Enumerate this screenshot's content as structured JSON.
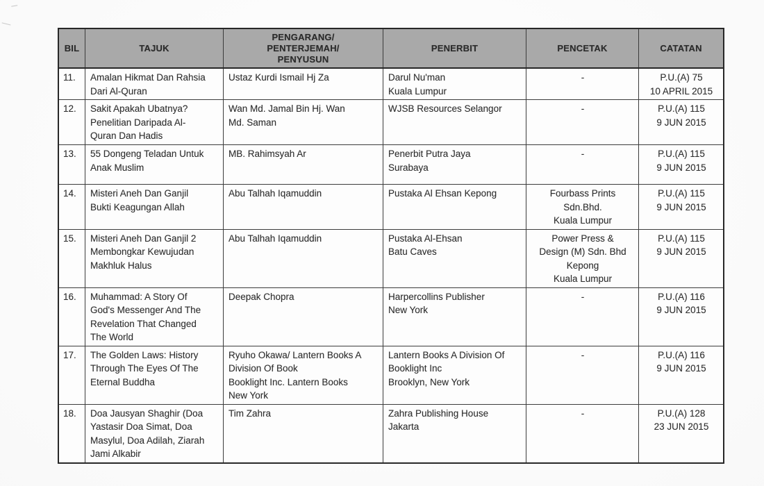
{
  "colors": {
    "header_bg": "#a9a9a9",
    "border": "#3b3b3b",
    "text": "#2f2f2f",
    "page_bg": "#fbfbfb"
  },
  "table": {
    "columns": [
      {
        "key": "bil",
        "label": "BIL"
      },
      {
        "key": "tajuk",
        "label": "TAJUK"
      },
      {
        "key": "pengarang",
        "label": "PENGARANG/\nPENTERJEMAH/\nPENYUSUN"
      },
      {
        "key": "penerbit",
        "label": "PENERBIT"
      },
      {
        "key": "pencetak",
        "label": "PENCETAK"
      },
      {
        "key": "catatan",
        "label": "CATATAN"
      }
    ],
    "rows": [
      {
        "bil": "11.",
        "tajuk": "Amalan Hikmat Dan Rahsia\nDari Al-Quran",
        "pengarang": "Ustaz Kurdi Ismail Hj Za",
        "penerbit": "Darul Nu'man\nKuala Lumpur",
        "pencetak": "-",
        "catatan": "P.U.(A) 75\n10 APRIL 2015"
      },
      {
        "bil": "12.",
        "tajuk": "Sakit Apakah Ubatnya?\nPenelitian Daripada Al-\nQuran Dan Hadis",
        "pengarang": "Wan Md. Jamal Bin Hj. Wan\nMd. Saman",
        "penerbit": "WJSB Resources Selangor",
        "pencetak": "-",
        "catatan": "P.U.(A) 115\n9 JUN 2015"
      },
      {
        "bil": "13.",
        "tajuk": "55 Dongeng Teladan Untuk\nAnak Muslim",
        "pengarang": "MB. Rahimsyah Ar",
        "penerbit": "Penerbit Putra Jaya\nSurabaya",
        "pencetak": "-",
        "catatan": "P.U.(A) 115\n9 JUN 2015"
      },
      {
        "bil": "14.",
        "tajuk": "Misteri Aneh Dan Ganjil\nBukti Keagungan Allah",
        "pengarang": "Abu Talhah Iqamuddin",
        "penerbit": "Pustaka Al Ehsan  Kepong",
        "pencetak": "Fourbass Prints\nSdn.Bhd.\nKuala Lumpur",
        "catatan": "P.U.(A) 115\n9 JUN 2015"
      },
      {
        "bil": "15.",
        "tajuk": "Misteri Aneh Dan Ganjil 2\nMembongkar Kewujudan\nMakhluk Halus",
        "pengarang": "Abu Talhah Iqamuddin",
        "penerbit": "Pustaka Al-Ehsan\nBatu Caves",
        "pencetak": "Power Press &\nDesign (M) Sdn. Bhd\nKepong\nKuala Lumpur",
        "catatan": "P.U.(A) 115\n9 JUN 2015"
      },
      {
        "bil": "16.",
        "tajuk": "Muhammad: A Story Of\nGod's Messenger And The\nRevelation That Changed\nThe World",
        "pengarang": "Deepak Chopra",
        "penerbit": "Harpercollins Publisher\nNew York",
        "pencetak": "-",
        "catatan": "P.U.(A) 116\n9 JUN 2015"
      },
      {
        "bil": "17.",
        "tajuk": "The Golden Laws: History\nThrough The Eyes Of The\nEternal Buddha",
        "pengarang": "Ryuho Okawa/ Lantern Books A\nDivision Of Book\nBooklight Inc. Lantern Books\nNew York",
        "penerbit": "Lantern Books A Division Of\nBooklight Inc\nBrooklyn, New York",
        "pencetak": "-",
        "catatan": "P.U.(A) 116\n9 JUN 2015"
      },
      {
        "bil": "18.",
        "tajuk": "Doa Jausyan Shaghir (Doa\nYastasir Doa Simat, Doa\nMasylul, Doa Adilah, Ziarah\nJami Alkabir",
        "pengarang": "Tim Zahra",
        "penerbit": "Zahra Publishing House\nJakarta",
        "pencetak": "-",
        "catatan": "P.U.(A) 128\n23 JUN 2015"
      }
    ]
  }
}
